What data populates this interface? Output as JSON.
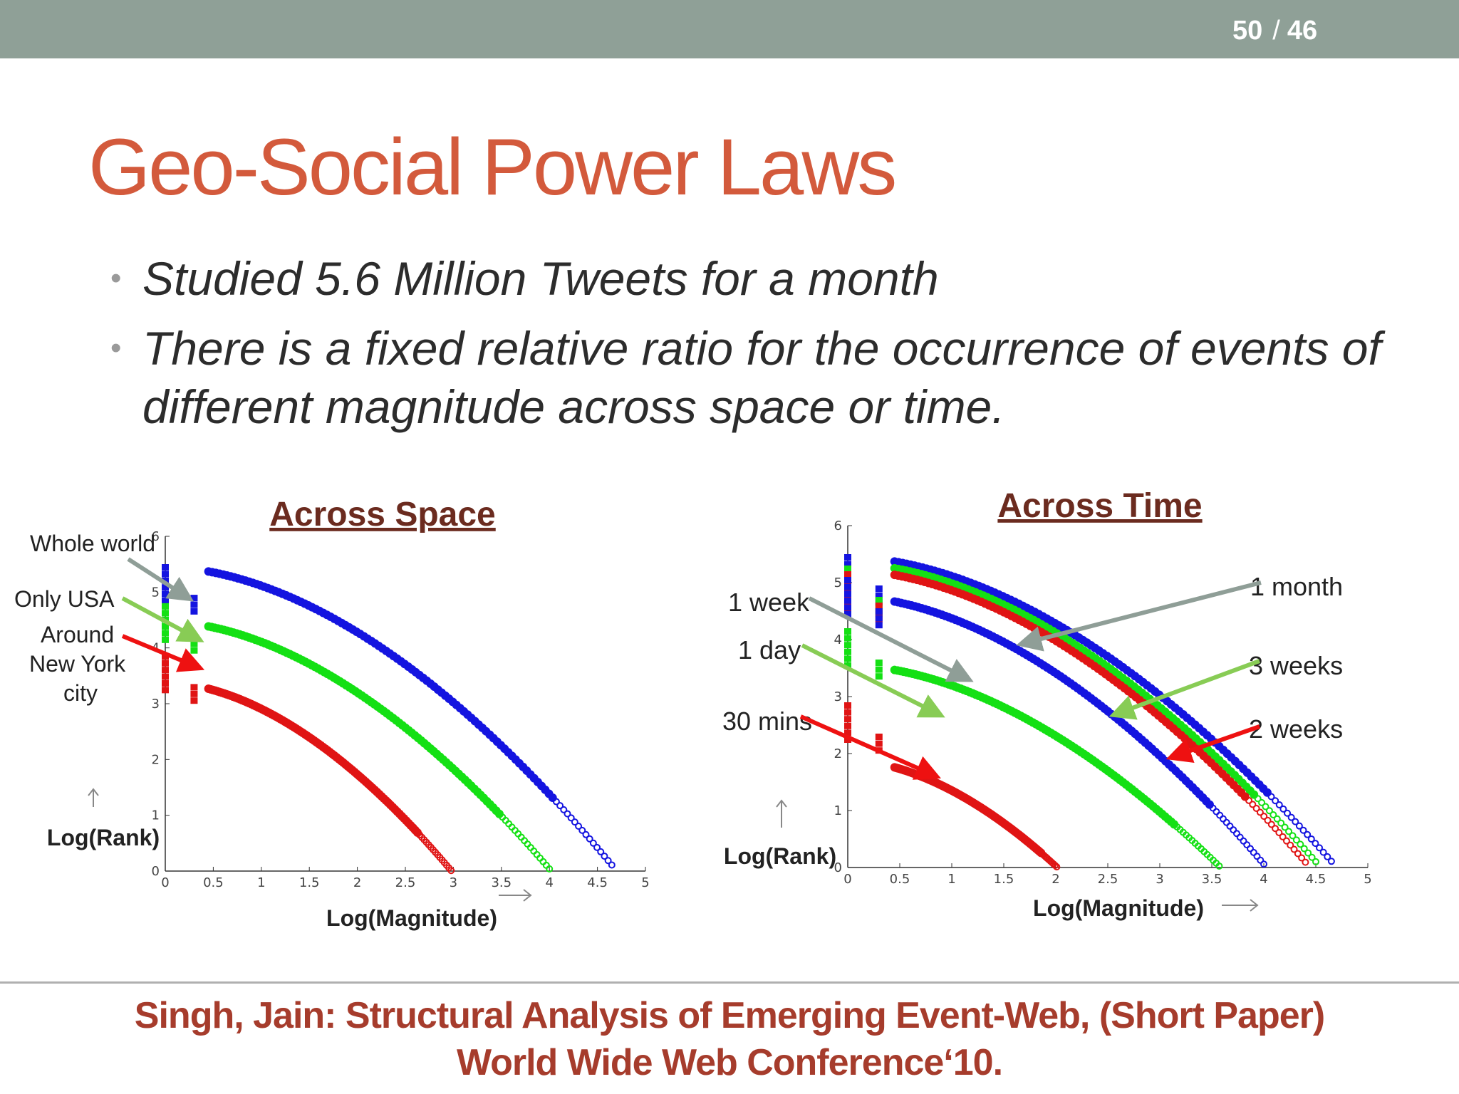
{
  "header": {
    "page_current": "50",
    "page_separator": "/",
    "page_total": "46"
  },
  "slide": {
    "title": "Geo-Social Power Laws",
    "bullets": [
      "Studied 5.6 Million Tweets for a month",
      "There is a fixed relative ratio for the occurrence of events of different magnitude across space or time."
    ]
  },
  "footer": {
    "line1": "Singh, Jain: Structural Analysis of Emerging Event-Web, (Short Paper)",
    "line2": "World Wide Web Conference‘10."
  },
  "colors": {
    "blue": "#1414e0",
    "green": "#14e014",
    "red": "#e01414",
    "annot_gray": "#8f9e97",
    "annot_green": "#88cc55",
    "annot_red": "#ee1111",
    "heading": "#6b2b1f"
  },
  "chart_data": [
    {
      "type": "scatter",
      "title": "Across Space",
      "xlabel": "Log(Magnitude)",
      "ylabel": "Log(Rank)",
      "xlim": [
        0,
        5
      ],
      "ylim": [
        0,
        6
      ],
      "xticks": [
        "0",
        "0.5",
        "1",
        "1.5",
        "2",
        "2.5",
        "3",
        "3.5",
        "4",
        "4.5",
        "5"
      ],
      "yticks": [
        "0",
        "1",
        "2",
        "3",
        "4",
        "5",
        "6"
      ],
      "series": [
        {
          "name": "Whole world",
          "color": "#1414e0",
          "scale": 1.0,
          "y0": 5.4,
          "xmax": 4.65
        },
        {
          "name": "Only USA",
          "color": "#14e014",
          "scale": 0.83,
          "y0": 4.7,
          "xmax": 4.0
        },
        {
          "name": "Around New York city",
          "color": "#e01414",
          "scale": 0.64,
          "y0": 3.8,
          "xmax": 3.0
        }
      ]
    },
    {
      "type": "scatter",
      "title": "Across Time",
      "xlabel": "Log(Magnitude)",
      "ylabel": "Log(Rank)",
      "xlim": [
        0,
        5
      ],
      "ylim": [
        0,
        6
      ],
      "xticks": [
        "0",
        "0.5",
        "1",
        "1.5",
        "2",
        "2.5",
        "3",
        "3.5",
        "4",
        "4.5",
        "5"
      ],
      "yticks": [
        "0",
        "1",
        "2",
        "3",
        "4",
        "5",
        "6"
      ],
      "series": [
        {
          "name": "1 month",
          "color": "#1414e0",
          "scale": 1.0,
          "y0": 5.4,
          "xmax": 4.65
        },
        {
          "name": "3 weeks",
          "color": "#14e014",
          "scale": 0.98,
          "y0": 5.2,
          "xmax": 4.5
        },
        {
          "name": "2 weeks",
          "color": "#e01414",
          "scale": 0.96,
          "y0": 5.1,
          "xmax": 4.4
        },
        {
          "name": "1 week",
          "color": "#1414e0",
          "scale": 0.88,
          "y0": 5.0,
          "xmax": 4.0
        },
        {
          "name": "1 day",
          "color": "#14e014",
          "scale": 0.67,
          "y0": 4.1,
          "xmax": 3.6
        },
        {
          "name": "30 mins",
          "color": "#e01414",
          "scale": 0.38,
          "y0": 2.8,
          "xmax": 2.1
        }
      ]
    }
  ]
}
